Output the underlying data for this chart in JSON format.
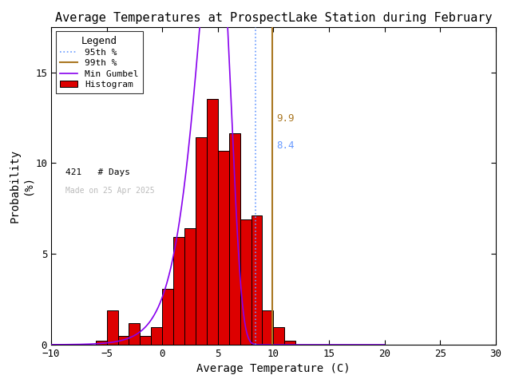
{
  "title": "Average Temperatures at ProspectLake Station during February",
  "xlabel": "Average Temperature (C)",
  "ylabel": "Probability\n(%)",
  "xlim": [
    -10,
    30
  ],
  "ylim": [
    0,
    17.5
  ],
  "xticks": [
    -10,
    -5,
    0,
    5,
    10,
    15,
    20,
    25,
    30
  ],
  "yticks": [
    0,
    5,
    10,
    15
  ],
  "bar_left_edges": [
    -8,
    -7,
    -6,
    -5,
    -4,
    -3,
    -2,
    -1,
    0,
    1,
    2,
    3,
    4,
    5,
    6,
    7,
    8,
    9,
    10,
    11
  ],
  "bar_heights": [
    0.0,
    0.0,
    0.24,
    1.9,
    0.48,
    1.19,
    0.48,
    0.95,
    3.09,
    5.94,
    6.41,
    11.4,
    13.54,
    10.69,
    11.64,
    6.89,
    7.13,
    1.9,
    0.95,
    0.24
  ],
  "bar_color": "#dd0000",
  "bar_edge_color": "#000000",
  "gumbel_mu": 4.8,
  "gumbel_beta": 1.5,
  "percentile_95": 8.4,
  "percentile_99": 9.9,
  "n_days": 421,
  "watermark": "Made on 25 Apr 2025",
  "watermark_color": "#bbbbbb",
  "gumbel_color": "#8800ee",
  "p95_color": "#6699ff",
  "p99_color": "#aa7722",
  "background_color": "#ffffff",
  "legend_title": "Legend",
  "title_fontsize": 11,
  "axis_fontsize": 10,
  "tick_fontsize": 9
}
